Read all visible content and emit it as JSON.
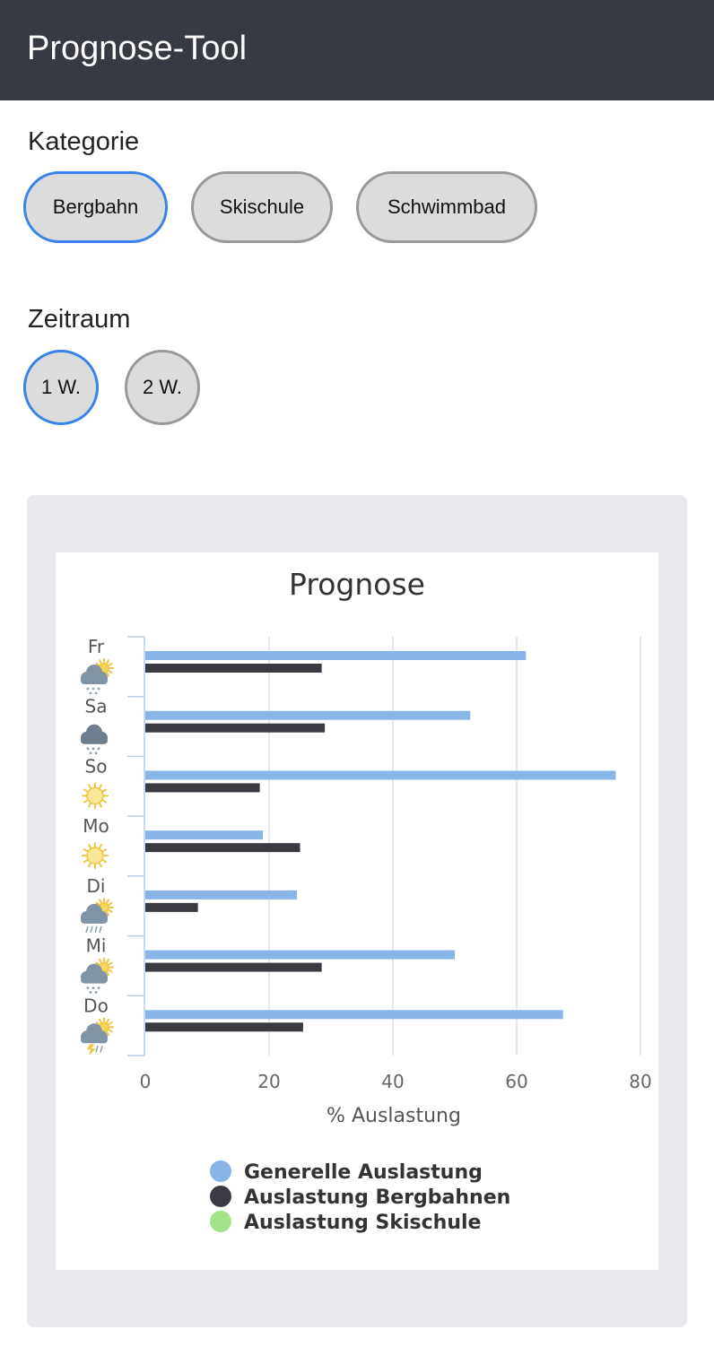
{
  "header": {
    "title": "Prognose-Tool"
  },
  "kategorie": {
    "label": "Kategorie",
    "options": [
      "Bergbahn",
      "Skischule",
      "Schwimmbad"
    ],
    "selected": "Bergbahn"
  },
  "zeitraum": {
    "label": "Zeitraum",
    "options": [
      "1 W.",
      "2 W."
    ],
    "selected": "1 W."
  },
  "chart_data": {
    "type": "bar",
    "orientation": "horizontal",
    "title": "Prognose",
    "xlabel": "% Auslastung",
    "ylabel": "",
    "xlim": [
      0,
      80
    ],
    "xticks": [
      0,
      20,
      40,
      60,
      80
    ],
    "grid": true,
    "legend_placement": "bottom",
    "categories": [
      "Fr",
      "Sa",
      "So",
      "Mo",
      "Di",
      "Mi",
      "Do"
    ],
    "weather_icons": [
      "snow-sun-icon",
      "snow-cloud-icon",
      "sun-icon",
      "sun-icon",
      "rain-sun-icon",
      "snow-sun-icon",
      "thunder-sun-icon"
    ],
    "series": [
      {
        "name": "Generelle Auslastung",
        "color": "#88b4e7",
        "values": [
          61.5,
          52.5,
          76,
          19,
          24.5,
          50,
          67.5
        ]
      },
      {
        "name": "Auslastung Bergbahnen",
        "color": "#3a3b42",
        "values": [
          28.5,
          29,
          18.5,
          25,
          8.5,
          28.5,
          25.5
        ]
      },
      {
        "name": "Auslastung Skischule",
        "color": "#a3e48a",
        "values": [
          0,
          0,
          0,
          0,
          0,
          0,
          0
        ]
      }
    ]
  }
}
